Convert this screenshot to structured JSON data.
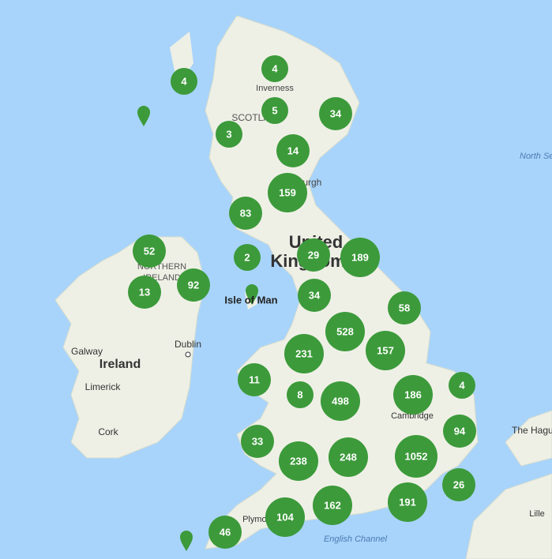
{
  "places": [
    "Inverness",
    "SCOTLAND",
    "Edinburgh",
    "United",
    "Kingdom",
    "NORTHERN",
    "IRELAND",
    "Isle of Man",
    "Ireland",
    "Galway",
    "Dublin",
    "Limerick",
    "Cork",
    "North Sea",
    "English Channel",
    "The Hague",
    "Cambridge",
    "Lille",
    "Plymouth"
  ],
  "clusters": [
    4,
    4,
    5,
    34,
    3,
    14,
    159,
    83,
    52,
    2,
    29,
    189,
    92,
    13,
    34,
    58,
    528,
    231,
    157,
    11,
    8,
    498,
    186,
    4,
    94,
    33,
    238,
    248,
    1052,
    26,
    191,
    162,
    104,
    46
  ]
}
